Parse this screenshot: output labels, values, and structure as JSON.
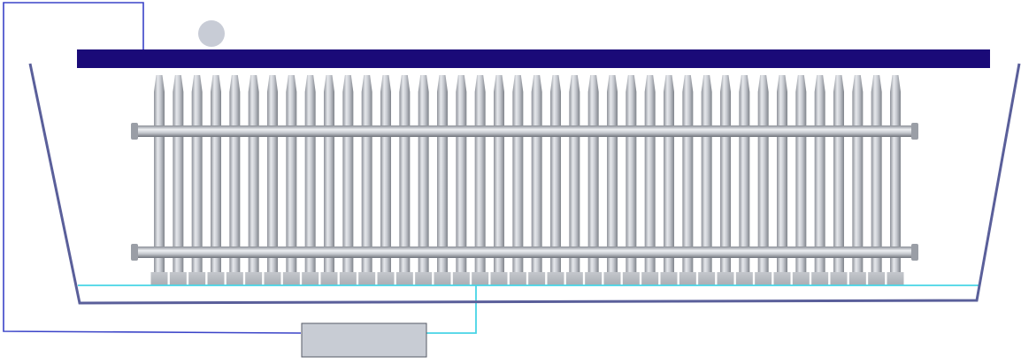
{
  "diagram": {
    "components": {
      "top_bar": {
        "color": "#1a0a78"
      },
      "indicator_light": {
        "color": "#c8ccd6"
      },
      "tank": {
        "color": "#5a5f9a"
      },
      "electrode_rods": {
        "count": 40,
        "color": "#b8bcc4"
      },
      "header_pipes": {
        "count": 2,
        "color": "#b4b8c0"
      },
      "bottom_electrode_line": {
        "color": "#47d4e6"
      },
      "power_lead": {
        "color": "#3a43c8"
      },
      "power_supply_box": {
        "color": "#c8ccd4"
      }
    }
  }
}
